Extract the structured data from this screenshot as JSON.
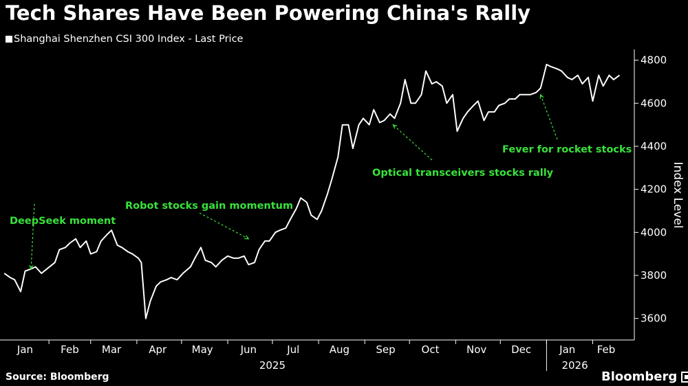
{
  "chart_data": {
    "type": "line",
    "title": "Tech Shares Have Been Powering China's Rally",
    "series": [
      {
        "name": "Shanghai Shenzhen CSI 300 Index - Last Price",
        "x": [
          "2025-01-02",
          "2025-01-06",
          "2025-01-09",
          "2025-01-13",
          "2025-01-16",
          "2025-01-20",
          "2025-01-23",
          "2025-01-27",
          "2025-02-05",
          "2025-02-08",
          "2025-02-12",
          "2025-02-15",
          "2025-02-19",
          "2025-02-22",
          "2025-02-26",
          "2025-03-01",
          "2025-03-05",
          "2025-03-08",
          "2025-03-12",
          "2025-03-15",
          "2025-03-19",
          "2025-03-22",
          "2025-03-26",
          "2025-03-29",
          "2025-04-02",
          "2025-04-04",
          "2025-04-07",
          "2025-04-10",
          "2025-04-14",
          "2025-04-17",
          "2025-04-21",
          "2025-04-24",
          "2025-04-28",
          "2025-05-02",
          "2025-05-07",
          "2025-05-10",
          "2025-05-14",
          "2025-05-17",
          "2025-05-21",
          "2025-05-24",
          "2025-05-28",
          "2025-06-01",
          "2025-06-05",
          "2025-06-08",
          "2025-06-12",
          "2025-06-15",
          "2025-06-19",
          "2025-06-22",
          "2025-06-26",
          "2025-06-29",
          "2025-07-03",
          "2025-07-06",
          "2025-07-10",
          "2025-07-13",
          "2025-07-17",
          "2025-07-20",
          "2025-07-24",
          "2025-07-27",
          "2025-07-31",
          "2025-08-03",
          "2025-08-07",
          "2025-08-10",
          "2025-08-14",
          "2025-08-17",
          "2025-08-21",
          "2025-08-24",
          "2025-08-28",
          "2025-08-31",
          "2025-09-04",
          "2025-09-07",
          "2025-09-11",
          "2025-09-14",
          "2025-09-18",
          "2025-09-21",
          "2025-09-25",
          "2025-09-28",
          "2025-10-02",
          "2025-10-05",
          "2025-10-09",
          "2025-10-12",
          "2025-10-16",
          "2025-10-19",
          "2025-10-23",
          "2025-10-26",
          "2025-10-30",
          "2025-11-02",
          "2025-11-06",
          "2025-11-09",
          "2025-11-13",
          "2025-11-16",
          "2025-11-20",
          "2025-11-23",
          "2025-11-27",
          "2025-11-30",
          "2025-12-04",
          "2025-12-07",
          "2025-12-11",
          "2025-12-14",
          "2025-12-18",
          "2025-12-21",
          "2025-12-25",
          "2025-12-28",
          "2026-01-01",
          "2026-01-04",
          "2026-01-08",
          "2026-01-11",
          "2026-01-15",
          "2026-01-18",
          "2026-01-22",
          "2026-01-25",
          "2026-01-29",
          "2026-02-01",
          "2026-02-05",
          "2026-02-08",
          "2026-02-12",
          "2026-02-15",
          "2026-02-19"
        ],
        "y": [
          3810,
          3790,
          3780,
          3725,
          3820,
          3830,
          3840,
          3810,
          3860,
          3920,
          3930,
          3950,
          3970,
          3930,
          3960,
          3900,
          3910,
          3960,
          3990,
          4010,
          3940,
          3930,
          3910,
          3900,
          3880,
          3860,
          3600,
          3680,
          3750,
          3770,
          3780,
          3790,
          3780,
          3810,
          3840,
          3880,
          3930,
          3870,
          3860,
          3840,
          3870,
          3890,
          3880,
          3880,
          3890,
          3850,
          3860,
          3920,
          3960,
          3960,
          4000,
          4010,
          4020,
          4060,
          4110,
          4160,
          4140,
          4080,
          4060,
          4100,
          4180,
          4250,
          4350,
          4500,
          4500,
          4390,
          4500,
          4530,
          4500,
          4570,
          4510,
          4520,
          4550,
          4530,
          4600,
          4710,
          4600,
          4600,
          4640,
          4750,
          4690,
          4700,
          4680,
          4600,
          4640,
          4470,
          4530,
          4560,
          4590,
          4610,
          4520,
          4560,
          4560,
          4590,
          4600,
          4620,
          4620,
          4640,
          4640,
          4640,
          4650,
          4670,
          4780,
          4770,
          4760,
          4750,
          4720,
          4710,
          4730,
          4690,
          4720,
          4610,
          4730,
          4680,
          4730,
          4710,
          4730
        ]
      }
    ],
    "ylim": [
      3500,
      4850
    ],
    "yticks": [
      3600,
      3800,
      4000,
      4200,
      4400,
      4600,
      4800
    ],
    "ylabel": "Index Level",
    "xticks": [
      {
        "date": "2025-01-16",
        "label": "Jan"
      },
      {
        "date": "2025-02-15",
        "label": "Feb"
      },
      {
        "date": "2025-03-15",
        "label": "Mar"
      },
      {
        "date": "2025-04-15",
        "label": "Apr"
      },
      {
        "date": "2025-05-15",
        "label": "May"
      },
      {
        "date": "2025-06-15",
        "label": "Jun"
      },
      {
        "date": "2025-07-15",
        "label": "Jul"
      },
      {
        "date": "2025-08-15",
        "label": "Aug"
      },
      {
        "date": "2025-09-15",
        "label": "Sep"
      },
      {
        "date": "2025-10-15",
        "label": "Oct"
      },
      {
        "date": "2025-11-15",
        "label": "Nov"
      },
      {
        "date": "2025-12-15",
        "label": "Dec"
      },
      {
        "date": "2026-01-15",
        "label": "Jan"
      },
      {
        "date": "2026-02-10",
        "label": "Feb"
      }
    ],
    "year_labels": [
      {
        "date": "2025-07-01",
        "label": "2025"
      },
      {
        "date": "2026-01-20",
        "label": "2026"
      }
    ],
    "year_divider": "2026-01-01",
    "xlim": [
      "2025-01-01",
      "2026-02-28"
    ],
    "annotations": [
      {
        "text": "DeepSeek moment",
        "date": "2025-01-20",
        "value": 3830
      },
      {
        "text": "Robot stocks gain momentum",
        "date": "2025-06-15",
        "value": 3970
      },
      {
        "text": "Optical transceivers stocks rally",
        "date": "2025-09-20",
        "value": 4500
      },
      {
        "text": "Fever for rocket stocks",
        "date": "2025-12-28",
        "value": 4640
      }
    ],
    "colors": {
      "background": "#000000",
      "line": "#ffffff",
      "annotation": "#39e23c"
    },
    "grid": false,
    "legend": "top-left"
  },
  "footer": {
    "source": "Source: Bloomberg",
    "brand": "Bloomberg"
  }
}
